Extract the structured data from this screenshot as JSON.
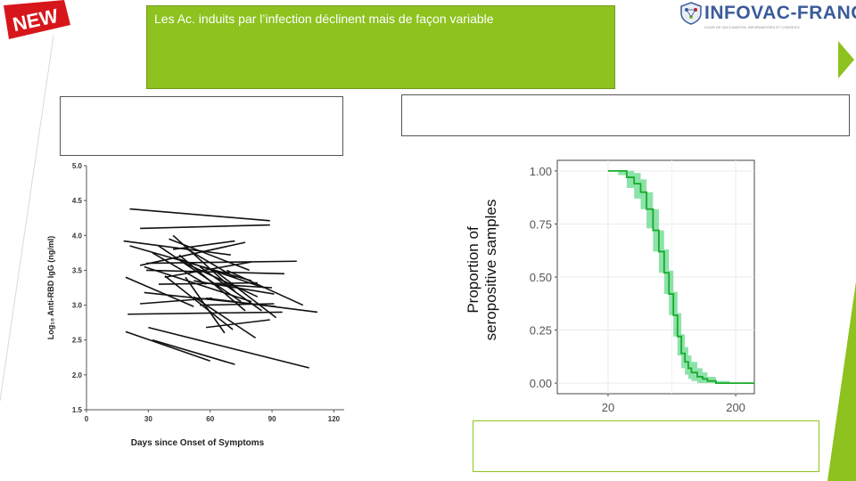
{
  "badge": {
    "text": "NEW",
    "color": "#d7161c"
  },
  "title": {
    "text": "Les Ac. induits par l’infection déclinent mais de façon variable"
  },
  "brand": {
    "name": "INFOVAC-FRANCE",
    "tagline": "LIGUE DE VACCINATION, INFORMATIONS ET CONSEILS",
    "icon": "shield-network-icon"
  },
  "colors": {
    "accent": "#8dc21f",
    "band": "#66d98c",
    "curve": "#1aaa2a"
  },
  "chart_data": [
    {
      "type": "line",
      "xlabel": "Days since Onset of Symptoms",
      "ylabel": "Log₁₀ Anti-RBD IgG (ng/ml)",
      "xlim": [
        0,
        125
      ],
      "ylim": [
        1.5,
        5.0
      ],
      "xticks": [
        0,
        30,
        60,
        90,
        120
      ],
      "yticks": [
        1.5,
        2.0,
        2.5,
        3.0,
        3.5,
        4.0,
        4.5,
        5.0
      ],
      "series": [
        {
          "x": [
            21,
            89
          ],
          "y": [
            4.38,
            4.21
          ]
        },
        {
          "x": [
            26,
            89
          ],
          "y": [
            4.1,
            4.15
          ]
        },
        {
          "x": [
            18,
            70
          ],
          "y": [
            3.92,
            3.72
          ]
        },
        {
          "x": [
            21,
            80
          ],
          "y": [
            3.85,
            3.35
          ]
        },
        {
          "x": [
            26,
            77
          ],
          "y": [
            3.57,
            3.9
          ]
        },
        {
          "x": [
            29,
            96
          ],
          "y": [
            3.5,
            3.45
          ]
        },
        {
          "x": [
            19,
            52
          ],
          "y": [
            3.4,
            2.98
          ]
        },
        {
          "x": [
            29,
            102
          ],
          "y": [
            3.6,
            3.63
          ]
        },
        {
          "x": [
            32,
            58
          ],
          "y": [
            3.75,
            3.3
          ]
        },
        {
          "x": [
            35,
            83
          ],
          "y": [
            3.3,
            3.32
          ]
        },
        {
          "x": [
            35,
            75
          ],
          "y": [
            3.85,
            3.05
          ]
        },
        {
          "x": [
            38,
            80
          ],
          "y": [
            3.4,
            3.62
          ]
        },
        {
          "x": [
            42,
            72
          ],
          "y": [
            3.8,
            3.92
          ]
        },
        {
          "x": [
            42,
            72
          ],
          "y": [
            4.0,
            3.2
          ]
        },
        {
          "x": [
            45,
            77
          ],
          "y": [
            3.72,
            2.92
          ]
        },
        {
          "x": [
            48,
            83
          ],
          "y": [
            3.6,
            3.12
          ]
        },
        {
          "x": [
            52,
            91
          ],
          "y": [
            3.35,
            3.16
          ]
        },
        {
          "x": [
            55,
            85
          ],
          "y": [
            3.55,
            2.92
          ]
        },
        {
          "x": [
            58,
            112
          ],
          "y": [
            3.1,
            2.9
          ]
        },
        {
          "x": [
            61,
            90
          ],
          "y": [
            3.3,
            3.25
          ]
        },
        {
          "x": [
            45,
            86
          ],
          "y": [
            3.66,
            3.25
          ]
        },
        {
          "x": [
            62,
            92
          ],
          "y": [
            3.5,
            2.82
          ]
        },
        {
          "x": [
            49,
            73
          ],
          "y": [
            3.8,
            3.38
          ]
        },
        {
          "x": [
            68,
            105
          ],
          "y": [
            3.5,
            3.0
          ]
        },
        {
          "x": [
            20,
            95
          ],
          "y": [
            2.87,
            2.9
          ]
        },
        {
          "x": [
            28,
            92
          ],
          "y": [
            3.18,
            2.98
          ]
        },
        {
          "x": [
            58,
            89
          ],
          "y": [
            2.68,
            2.79
          ]
        },
        {
          "x": [
            52,
            82
          ],
          "y": [
            3.12,
            2.53
          ]
        },
        {
          "x": [
            30,
            108
          ],
          "y": [
            2.68,
            2.1
          ]
        },
        {
          "x": [
            19,
            60
          ],
          "y": [
            2.62,
            2.2
          ]
        },
        {
          "x": [
            32,
            72
          ],
          "y": [
            2.5,
            2.15
          ]
        },
        {
          "x": [
            38,
            71
          ],
          "y": [
            3.42,
            2.65
          ]
        },
        {
          "x": [
            26,
            61
          ],
          "y": [
            3.02,
            3.1
          ]
        },
        {
          "x": [
            28,
            80
          ],
          "y": [
            3.55,
            3.05
          ]
        },
        {
          "x": [
            40,
            79
          ],
          "y": [
            3.95,
            3.5
          ]
        },
        {
          "x": [
            55,
            91
          ],
          "y": [
            3.0,
            3.02
          ]
        },
        {
          "x": [
            48,
            67
          ],
          "y": [
            3.4,
            2.6
          ]
        }
      ]
    },
    {
      "type": "area",
      "xlabel": "",
      "ylabel": "Proportion of seropositive samples",
      "xscale": "log",
      "xlim": [
        8,
        280
      ],
      "ylim": [
        -0.05,
        1.05
      ],
      "xticks": [
        "20",
        "200"
      ],
      "yticks": [
        "0.00",
        "0.25",
        "0.50",
        "0.75",
        "1.00"
      ],
      "series": [
        {
          "name": "",
          "x": [
            20,
            24,
            28,
            32,
            36,
            40,
            45,
            50,
            55,
            60,
            65,
            70,
            75,
            80,
            85,
            90,
            100,
            110,
            120,
            140,
            160,
            180,
            200,
            250,
            280
          ],
          "y": [
            1.0,
            1.0,
            0.97,
            0.94,
            0.9,
            0.82,
            0.72,
            0.62,
            0.52,
            0.42,
            0.32,
            0.22,
            0.14,
            0.1,
            0.07,
            0.05,
            0.03,
            0.02,
            0.01,
            0.0,
            0.0,
            0.0,
            0.0,
            0.0,
            0.0
          ],
          "lower": [
            1.0,
            0.98,
            0.92,
            0.87,
            0.82,
            0.73,
            0.62,
            0.52,
            0.42,
            0.32,
            0.22,
            0.13,
            0.07,
            0.04,
            0.02,
            0.01,
            0.0,
            0.0,
            0.0,
            0.0,
            0.0,
            0.0,
            0.0,
            0.0,
            0.0
          ],
          "upper": [
            1.0,
            1.0,
            1.0,
            0.99,
            0.96,
            0.9,
            0.82,
            0.72,
            0.63,
            0.53,
            0.43,
            0.33,
            0.23,
            0.17,
            0.13,
            0.1,
            0.07,
            0.05,
            0.03,
            0.01,
            0.01,
            0.0,
            0.0,
            0.0,
            0.0
          ]
        }
      ]
    }
  ]
}
